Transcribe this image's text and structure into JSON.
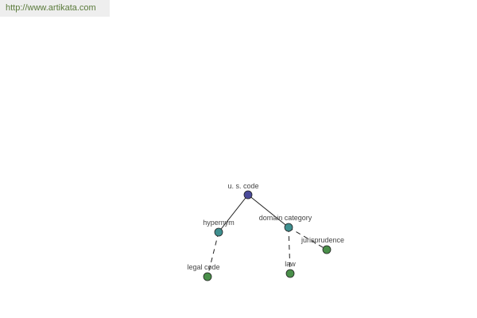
{
  "watermark": {
    "text": "http://www.artikata.com"
  },
  "graph": {
    "nodes": [
      {
        "id": "root",
        "label": "u. s. code",
        "color": "#4b4b9b"
      },
      {
        "id": "hypernym",
        "label": "hypernym",
        "color": "#3f8f8f"
      },
      {
        "id": "domain",
        "label": "domain category",
        "color": "#3f8f8f"
      },
      {
        "id": "legal",
        "label": "legal code",
        "color": "#4a8f4a"
      },
      {
        "id": "law",
        "label": "law",
        "color": "#4a8f4a"
      },
      {
        "id": "juris",
        "label": "jurisprudence",
        "color": "#4a8f4a"
      }
    ],
    "edges": [
      {
        "from": "root",
        "to": "hypernym",
        "style": "solid"
      },
      {
        "from": "root",
        "to": "domain",
        "style": "solid"
      },
      {
        "from": "hypernym",
        "to": "legal",
        "style": "dashed"
      },
      {
        "from": "domain",
        "to": "law",
        "style": "dashed"
      },
      {
        "from": "domain",
        "to": "juris",
        "style": "dashed"
      }
    ]
  }
}
